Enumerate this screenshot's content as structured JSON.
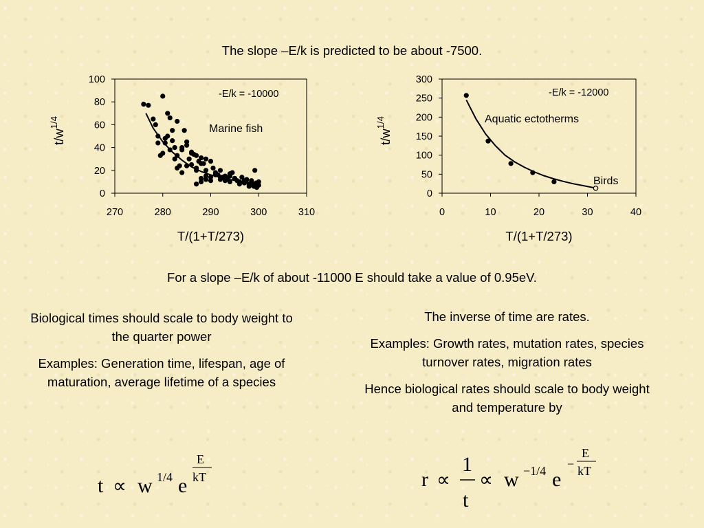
{
  "heading": "The slope –E/k is predicted to be about -7500.",
  "mid_text": "For a slope –E/k of about -11000 E should take a value of 0.95eV.",
  "left_col": {
    "p1": "Biological times should scale to body weight to the quarter power",
    "p2": "Examples: Generation time, lifespan, age of maturation, average lifetime of a species"
  },
  "right_col": {
    "p1": "The inverse of time are rates.",
    "p2": "Examples: Growth rates, mutation rates, species turnover rates, migration rates",
    "p3": "Hence biological rates should scale to body weight and temperature by"
  },
  "formula_left": {
    "t": "t",
    "prop": "∝",
    "w": "w",
    "w_exp": "1/4",
    "e": "e",
    "exp_num": "E",
    "exp_den": "kT"
  },
  "formula_right": {
    "r": "r",
    "prop": "∝",
    "frac_num": "1",
    "frac_den": "t",
    "prop2": "∝",
    "w": "w",
    "w_exp": "−1/4",
    "e": "e",
    "minus": "−",
    "exp_num": "E",
    "exp_den": "kT"
  },
  "chart_data": [
    {
      "type": "scatter",
      "title": "",
      "xlabel": "T/(1+T/273)",
      "ylabel_base": "t/w",
      "ylabel_sup": "1/4",
      "xlim": [
        270,
        310
      ],
      "ylim": [
        0,
        100
      ],
      "xticks": [
        270,
        280,
        290,
        300,
        310
      ],
      "yticks": [
        0,
        20,
        40,
        60,
        80,
        100
      ],
      "annotations": [
        "-E/k = -10000",
        "Marine fish"
      ],
      "fit_curve": {
        "x": [
          276.5,
          278,
          280,
          282,
          284,
          286,
          288,
          290,
          292,
          294,
          296,
          298,
          300
        ],
        "y": [
          70,
          57,
          45,
          36,
          29,
          23,
          19,
          16,
          14,
          12,
          10.5,
          9.5,
          8.5
        ]
      },
      "points": {
        "x": [
          276,
          277,
          278,
          278.5,
          279,
          280,
          280.5,
          281,
          281.5,
          282,
          282.5,
          283,
          279,
          280,
          281,
          282,
          283,
          284,
          284.5,
          285,
          285.5,
          286,
          286.5,
          287,
          287.5,
          288,
          288.5,
          289,
          279.5,
          280.5,
          281.5,
          282.5,
          283.5,
          284,
          285,
          286,
          287,
          288,
          289,
          290,
          290.5,
          291,
          291.5,
          292,
          292.5,
          293,
          293.5,
          294,
          294.5,
          295,
          295.5,
          296,
          296.5,
          297,
          297.5,
          298,
          298.5,
          299,
          299.5,
          300,
          283,
          284,
          285,
          286,
          287,
          288,
          289,
          290,
          291,
          292,
          293,
          294,
          295,
          296,
          297,
          298,
          299,
          299.2,
          299.6,
          300,
          287,
          288,
          289,
          290,
          291,
          292,
          293,
          294,
          295,
          296,
          297,
          298,
          299
        ],
        "y": [
          78,
          77,
          65,
          60,
          50,
          85,
          44,
          70,
          66,
          55,
          40,
          63,
          44,
          35,
          50,
          46,
          33,
          38,
          55,
          42,
          30,
          36,
          34,
          22,
          28,
          31,
          26,
          20,
          33,
          48,
          38,
          30,
          24,
          40,
          45,
          35,
          33,
          26,
          30,
          28,
          22,
          18,
          16,
          20,
          14,
          15,
          12,
          17,
          18,
          13,
          11,
          10,
          14,
          9,
          12,
          8,
          11,
          7,
          9,
          10,
          22,
          18,
          24,
          25,
          20,
          13,
          15,
          11,
          16,
          14,
          12,
          10,
          13,
          8,
          9,
          7,
          6,
          20,
          5,
          7,
          8,
          10,
          12,
          14,
          17,
          12,
          11,
          15,
          13,
          9,
          11,
          6,
          8
        ]
      }
    },
    {
      "type": "scatter",
      "title": "",
      "xlabel": "T/(1+T/273)",
      "ylabel_base": "t/w",
      "ylabel_sup": "1/4",
      "xlim": [
        0,
        40
      ],
      "ylim": [
        0,
        300
      ],
      "xticks": [
        0,
        10,
        20,
        30,
        40
      ],
      "yticks": [
        0,
        50,
        100,
        150,
        200,
        250,
        300
      ],
      "annotations": [
        "-E/k = -12000",
        "Aquatic ectotherms",
        "Birds"
      ],
      "fit_curve": {
        "x": [
          5,
          7,
          9,
          11,
          13,
          15,
          17,
          19,
          21,
          23,
          25,
          27,
          29,
          31.5
        ],
        "y": [
          245,
          195,
          155,
          125,
          100,
          82,
          68,
          56,
          46,
          38,
          31,
          25,
          20,
          14
        ]
      },
      "points": {
        "x": [
          5,
          9.5,
          14.2,
          18.7,
          23.1
        ],
        "y": [
          257,
          137,
          78,
          54,
          30
        ]
      },
      "open_points": {
        "x": [
          31.7
        ],
        "y": [
          13
        ]
      }
    }
  ]
}
